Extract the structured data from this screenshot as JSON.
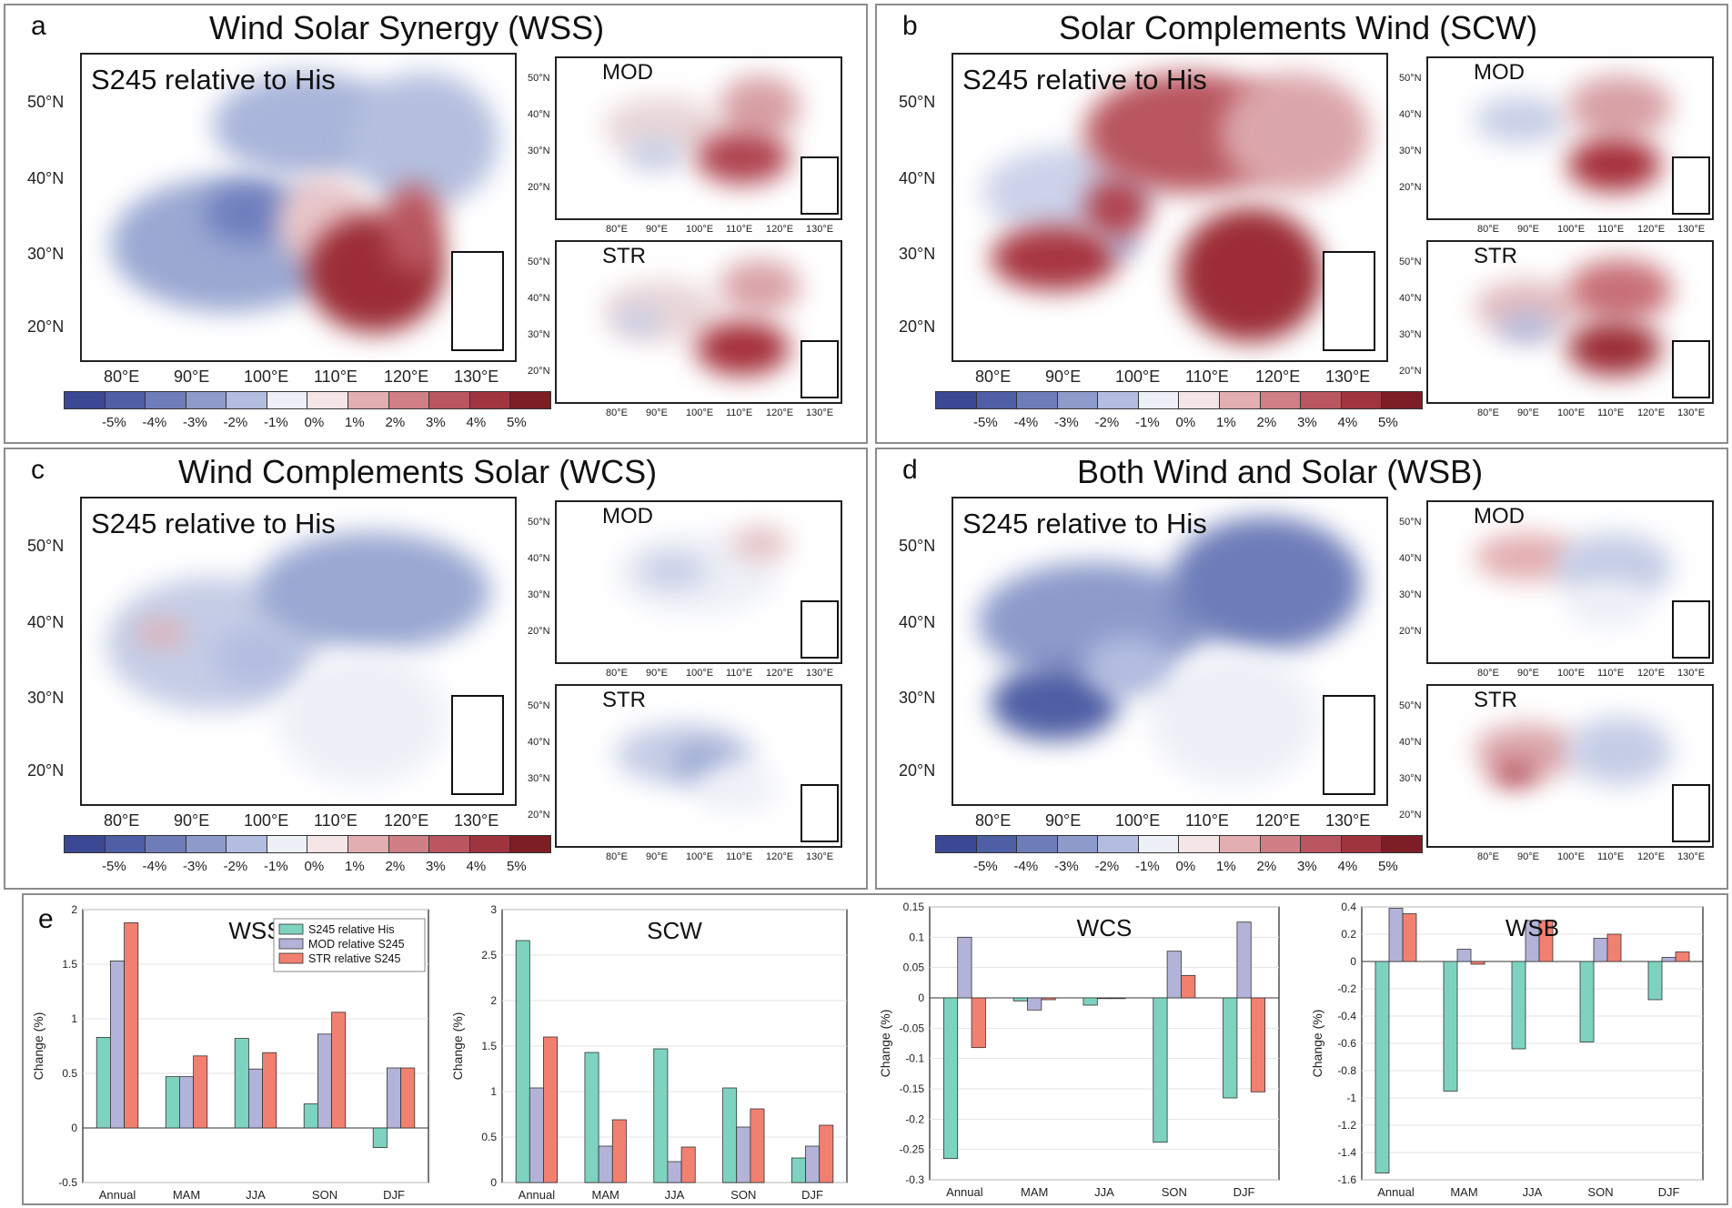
{
  "panels": {
    "a": {
      "letter": "a",
      "title": "Wind Solar Synergy (WSS)"
    },
    "b": {
      "letter": "b",
      "title": "Solar Complements Wind (SCW)"
    },
    "c": {
      "letter": "c",
      "title": "Wind Complements Solar (WCS)"
    },
    "d": {
      "letter": "d",
      "title": "Both Wind and Solar (WSB)"
    },
    "e": {
      "letter": "e"
    }
  },
  "map_labels": {
    "main": "S245 relative to His",
    "mod": "MOD",
    "str": "STR"
  },
  "lat_ticks": [
    "50°N",
    "40°N",
    "30°N",
    "20°N"
  ],
  "lon_ticks": [
    "80°E",
    "90°E",
    "100°E",
    "110°E",
    "120°E",
    "130°E"
  ],
  "colorbar": {
    "labels": [
      "-5%",
      "-4%",
      "-3%",
      "-2%",
      "-1%",
      "0%",
      "1%",
      "2%",
      "3%",
      "4%",
      "5%"
    ],
    "colors": [
      "#3b4994",
      "#4f5fa5",
      "#6e7db9",
      "#8d9bcb",
      "#b3bde0",
      "#eef0f7",
      "#f4e5e6",
      "#e3aeb1",
      "#cf7f85",
      "#b9565f",
      "#a1353f",
      "#7d1d25"
    ]
  },
  "chart_data": [
    {
      "type": "bar",
      "title": "WSS",
      "ylabel": "Change (%)",
      "categories": [
        "Annual",
        "MAM",
        "JJA",
        "SON",
        "DJF"
      ],
      "ylim": [
        -0.5,
        2
      ],
      "yticks": [
        -0.5,
        0,
        0.5,
        1,
        1.5,
        2
      ],
      "ytick_labels": [
        "-0.5",
        "0",
        "0.5",
        "1",
        "1.5",
        "2"
      ],
      "legend_position": "top-right",
      "series": [
        {
          "name": "S245 relative His",
          "color": "#7dd3c0",
          "values": [
            0.83,
            0.47,
            0.82,
            0.22,
            -0.18
          ]
        },
        {
          "name": "MOD relative S245",
          "color": "#b3b3d9",
          "values": [
            1.53,
            0.47,
            0.54,
            0.86,
            0.55
          ]
        },
        {
          "name": "STR relative S245",
          "color": "#f28070",
          "values": [
            1.88,
            0.66,
            0.69,
            1.06,
            0.55
          ]
        }
      ]
    },
    {
      "type": "bar",
      "title": "SCW",
      "ylabel": "Change (%)",
      "categories": [
        "Annual",
        "MAM",
        "JJA",
        "SON",
        "DJF"
      ],
      "ylim": [
        0,
        3
      ],
      "yticks": [
        0,
        0.5,
        1,
        1.5,
        2,
        2.5,
        3
      ],
      "ytick_labels": [
        "0",
        "0.5",
        "1",
        "1.5",
        "2",
        "2.5",
        "3"
      ],
      "series": [
        {
          "values": [
            2.66,
            1.43,
            1.47,
            1.04,
            0.27
          ]
        },
        {
          "values": [
            1.04,
            0.4,
            0.23,
            0.61,
            0.4
          ]
        },
        {
          "values": [
            1.6,
            0.69,
            0.39,
            0.81,
            0.63
          ]
        }
      ]
    },
    {
      "type": "bar",
      "title": "WCS",
      "ylabel": "Change (%)",
      "categories": [
        "Annual",
        "MAM",
        "JJA",
        "SON",
        "DJF"
      ],
      "ylim": [
        -0.3,
        0.15
      ],
      "yticks": [
        -0.3,
        -0.25,
        -0.2,
        -0.15,
        -0.1,
        -0.05,
        0,
        0.05,
        0.1,
        0.15
      ],
      "ytick_labels": [
        "-0.3",
        "-0.25",
        "-0.2",
        "-0.15",
        "-0.1",
        "-0.05",
        "0",
        "0.05",
        "0.1",
        "0.15"
      ],
      "series": [
        {
          "values": [
            -0.265,
            -0.005,
            -0.012,
            -0.238,
            -0.165
          ]
        },
        {
          "values": [
            0.1,
            -0.02,
            0.0,
            0.077,
            0.125
          ]
        },
        {
          "values": [
            -0.082,
            -0.003,
            0.0,
            0.037,
            -0.155
          ]
        }
      ]
    },
    {
      "type": "bar",
      "title": "WSB",
      "ylabel": "Change (%)",
      "categories": [
        "Annual",
        "MAM",
        "JJA",
        "SON",
        "DJF"
      ],
      "ylim": [
        -1.6,
        0.4
      ],
      "yticks": [
        -1.6,
        -1.4,
        -1.2,
        -1,
        -0.8,
        -0.6,
        -0.4,
        -0.2,
        0,
        0.2,
        0.4
      ],
      "ytick_labels": [
        "-1.6",
        "-1.4",
        "-1.2",
        "-1",
        "-0.8",
        "-0.6",
        "-0.4",
        "-0.2",
        "0",
        "0.2",
        "0.4"
      ],
      "series": [
        {
          "values": [
            -1.55,
            -0.95,
            -0.64,
            -0.59,
            -0.28
          ]
        },
        {
          "values": [
            0.39,
            0.09,
            0.3,
            0.17,
            0.03
          ]
        },
        {
          "values": [
            0.35,
            -0.02,
            0.3,
            0.2,
            0.07
          ]
        }
      ]
    }
  ]
}
